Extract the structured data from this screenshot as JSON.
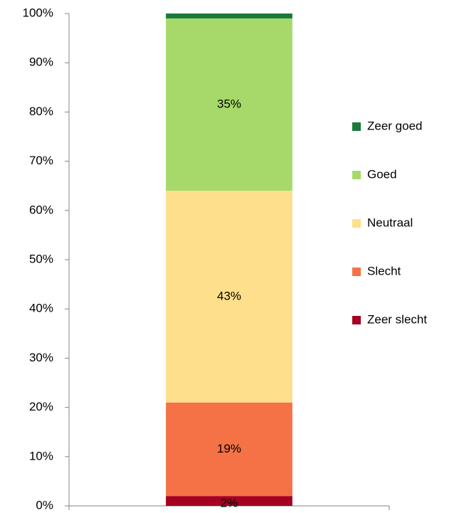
{
  "chart_data": {
    "type": "stacked-bar",
    "categories": [
      null
    ],
    "series": [
      {
        "name": "Zeer slecht",
        "color": "#a50021",
        "values": [
          2
        ],
        "value_labels": [
          "2%"
        ]
      },
      {
        "name": "Slecht",
        "color": "#f47245",
        "values": [
          19
        ],
        "value_labels": [
          "19%"
        ]
      },
      {
        "name": "Neutraal",
        "color": "#fedf8b",
        "values": [
          43
        ],
        "value_labels": [
          "43%"
        ]
      },
      {
        "name": "Goed",
        "color": "#a6d96a",
        "values": [
          35
        ],
        "value_labels": [
          "35%"
        ]
      },
      {
        "name": "Zeer goed",
        "color": "#1a7a3c",
        "values": [
          1
        ]
      }
    ],
    "ylim": [
      0,
      100
    ],
    "yticks": [
      {
        "value": 0,
        "label": "0%"
      },
      {
        "value": 10,
        "label": "10%"
      },
      {
        "value": 20,
        "label": "20%"
      },
      {
        "value": 30,
        "label": "30%"
      },
      {
        "value": 40,
        "label": "40%"
      },
      {
        "value": 50,
        "label": "50%"
      },
      {
        "value": 60,
        "label": "60%"
      },
      {
        "value": 70,
        "label": "70%"
      },
      {
        "value": 80,
        "label": "80%"
      },
      {
        "value": 90,
        "label": "90%"
      },
      {
        "value": 100,
        "label": "100%"
      }
    ],
    "legend": "right",
    "grid": false
  }
}
